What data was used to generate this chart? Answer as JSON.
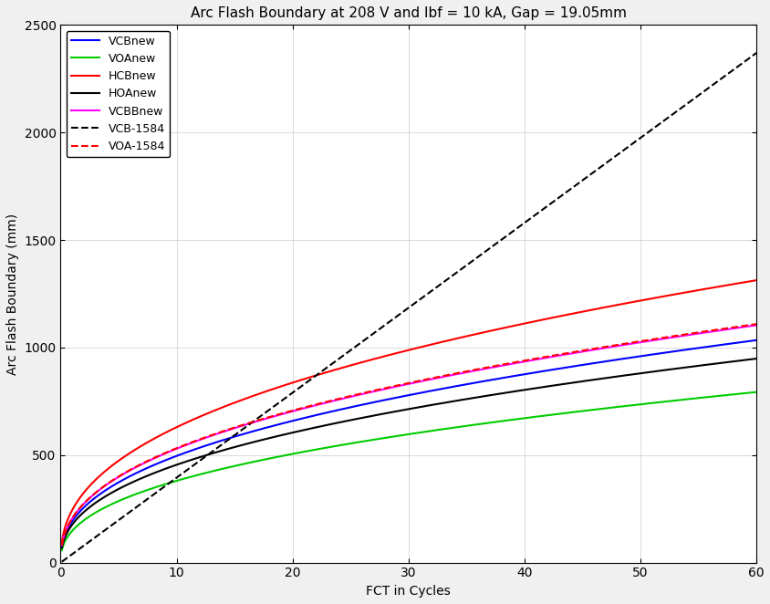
{
  "title": "Arc Flash Boundary at 208 V and Ibf = 10 kA, Gap = 19.05mm",
  "xlabel": "FCT in Cycles",
  "ylabel": "Arc Flash Boundary (mm)",
  "xlim": [
    0,
    60
  ],
  "ylim": [
    0,
    2500
  ],
  "xticks": [
    0,
    10,
    20,
    30,
    40,
    50,
    60
  ],
  "yticks": [
    0,
    500,
    1000,
    1500,
    2000,
    2500
  ],
  "curves": {
    "VCBnew": {
      "color": "#0000FF",
      "linestyle": "solid",
      "lw": 1.5,
      "k": 193.0,
      "exp": 0.41
    },
    "VOAnew": {
      "color": "#00CC00",
      "linestyle": "solid",
      "lw": 1.5,
      "k": 148.0,
      "exp": 0.41
    },
    "HCBnew": {
      "color": "#FF0000",
      "linestyle": "solid",
      "lw": 1.5,
      "k": 245.0,
      "exp": 0.41
    },
    "HOAnew": {
      "color": "#000000",
      "linestyle": "solid",
      "lw": 1.5,
      "k": 177.0,
      "exp": 0.41
    },
    "VCBBnew": {
      "color": "#FF00FF",
      "linestyle": "solid",
      "lw": 1.5,
      "k": 206.0,
      "exp": 0.41
    },
    "VCB-1584": {
      "color": "#000000",
      "linestyle": "dashed",
      "lw": 1.5,
      "k": 39.5,
      "exp": 1.0
    },
    "VOA-1584": {
      "color": "#FF0000",
      "linestyle": "dashed",
      "lw": 1.5,
      "k": 207.0,
      "exp": 0.41
    }
  },
  "legend_order": [
    "VCBnew",
    "VOAnew",
    "HCBnew",
    "HOAnew",
    "VCBBnew",
    "VCB-1584",
    "VOA-1584"
  ],
  "background_color": "#f0f0f0",
  "plot_bg": "#ffffff",
  "title_fontsize": 11,
  "label_fontsize": 10,
  "tick_fontsize": 10,
  "legend_fontsize": 9
}
